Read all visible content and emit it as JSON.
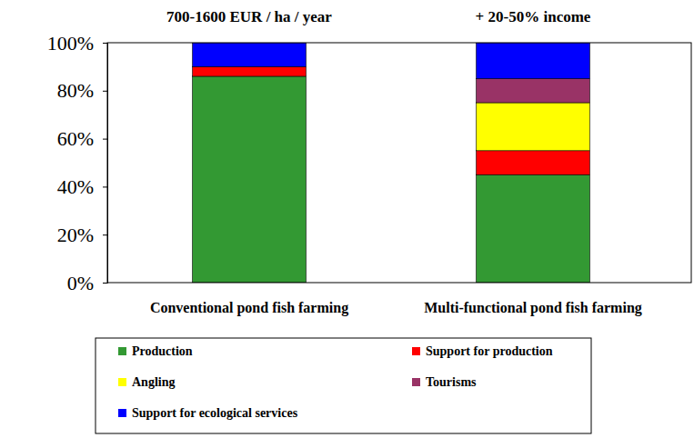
{
  "chart_data": {
    "type": "bar",
    "stacked": true,
    "annotations": [
      "700-1600 EUR / ha / year",
      "+ 20-50% income"
    ],
    "categories": [
      "Conventional pond fish farming",
      "Multi-functional pond fish farming"
    ],
    "series": [
      {
        "name": "Production",
        "color": "#339933",
        "values": [
          86,
          45
        ]
      },
      {
        "name": "Support for production",
        "color": "#ff0000",
        "values": [
          4,
          10
        ]
      },
      {
        "name": "Angling",
        "color": "#ffff00",
        "values": [
          0,
          20
        ]
      },
      {
        "name": "Tourisms",
        "color": "#993366",
        "values": [
          0,
          10
        ]
      },
      {
        "name": "Support for ecological services",
        "color": "#0000ff",
        "values": [
          10,
          15
        ]
      }
    ],
    "ylim": [
      0,
      100
    ],
    "yticks": [
      {
        "value": 0,
        "label": "0%"
      },
      {
        "value": 20,
        "label": "20%"
      },
      {
        "value": 40,
        "label": "40%"
      },
      {
        "value": 60,
        "label": "60%"
      },
      {
        "value": 80,
        "label": "80%"
      },
      {
        "value": 100,
        "label": "100%"
      }
    ],
    "grid": false,
    "legend": "bottom"
  }
}
